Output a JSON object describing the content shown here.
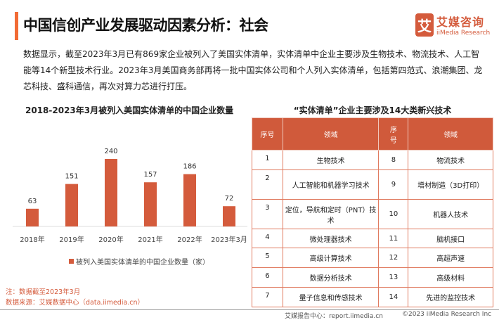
{
  "header": {
    "title": "中国信创产业发展驱动因素分析：社会",
    "logo_mark": "艾",
    "logo_cn": "艾媒咨询",
    "logo_en": "iiMedia Research"
  },
  "intro": "数据显示，截至2023年3月已有869家企业被列入了美国实体清单，实体清单中企业主要涉及生物技术、物流技术、人工智能等14个新型技术行业。2023年3月美国商务部再将一批中国实体公司和个人列入实体清单，包括第四范式、浪潮集团、龙芯科技、盛科通信，再次对算力芯进行打压。",
  "chart_data": {
    "type": "bar",
    "title": "2018-2023年3月被列入美国实体清单的中国企业数量",
    "categories": [
      "2018年",
      "2019年",
      "2020年",
      "2021年",
      "2022年",
      "2023年3月"
    ],
    "values": [
      63,
      151,
      240,
      157,
      186,
      72
    ],
    "legend": "被列入美国实体清单的中国企业数量（家）",
    "color": "#d45b3c",
    "ylim": [
      0,
      240
    ]
  },
  "notes": {
    "note": "注：数据截至2023年3月",
    "source": "数据来源：艾媒数据中心（data.iimedia.cn）"
  },
  "table": {
    "title": "“实体清单”企业主要涉及14大类新兴技术",
    "headers": [
      "序号",
      "领域",
      "序号",
      "领域"
    ],
    "rows": [
      [
        "1",
        "生物技术",
        "8",
        "物流技术"
      ],
      [
        "2",
        "人工智能和机器学习技术",
        "9",
        "增材制造（3D打印）"
      ],
      [
        "3",
        "定位，导航和定时（PNT）技术",
        "10",
        "机器人技术"
      ],
      [
        "4",
        "微处理器技术",
        "11",
        "脑机接口"
      ],
      [
        "5",
        "高级计算技术",
        "12",
        "高超声速"
      ],
      [
        "6",
        "数据分析技术",
        "13",
        "高级材料"
      ],
      [
        "7",
        "量子信息和传感技术",
        "14",
        "先进的监控技术"
      ]
    ]
  },
  "footer": {
    "left": "艾媒报告中心：report.iimedia.cn",
    "right": "©2023  iiMedia Research  Inc"
  }
}
